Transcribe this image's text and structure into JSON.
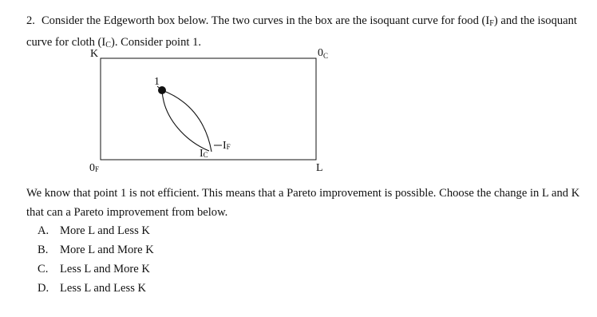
{
  "question": {
    "number": "2.",
    "parts": [
      "Consider the Edgeworth box below. The two curves in the box are the isoquant curve for food (I",
      "F",
      ") and the isoquant curve for cloth (I",
      "C",
      "). Consider point 1."
    ]
  },
  "diagram": {
    "axis_k": "K",
    "origin_c": {
      "base": "0",
      "sub": "C"
    },
    "origin_f": {
      "base": "0",
      "sub": "F"
    },
    "axis_l": "L",
    "point_label": "1",
    "curve_c": {
      "base": "I",
      "sub": "C"
    },
    "curve_f": {
      "base": "I",
      "sub": "F"
    }
  },
  "body": {
    "text": "We know that point 1 is not efficient. This means that a Pareto improvement is possible. Choose the change in L and K that can a Pareto improvement from below."
  },
  "options": [
    {
      "letter": "A.",
      "text": "More L and Less K"
    },
    {
      "letter": "B.",
      "text": "More L and More K"
    },
    {
      "letter": "C.",
      "text": "Less L and More K"
    },
    {
      "letter": "D.",
      "text": "Less L and Less K"
    }
  ]
}
